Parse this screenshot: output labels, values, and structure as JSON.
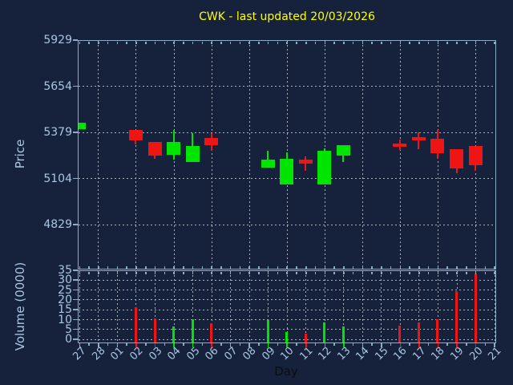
{
  "title": "CWK - last updated 20/03/2026",
  "colors": {
    "background": "#16223c",
    "axis": "#8cadc8",
    "tick_label": "#a9c6e2",
    "grid": "#a9afb8",
    "up": "#00e500",
    "down": "#f01515",
    "title": "#ffff00",
    "xlabel": "#0d0d0d"
  },
  "chart_data": [
    {
      "type": "candlestick",
      "title": "CWK - last updated 20/03/2026",
      "xlabel": "Day",
      "ylabel": "Price",
      "ylim": [
        4566,
        5929
      ],
      "yticks": [
        5929,
        5654,
        5379,
        5104,
        4829
      ],
      "grid": true,
      "grid_vertical_every": "2 days starting at 28",
      "categories": [
        "27",
        "28",
        "01",
        "02",
        "03",
        "04",
        "05",
        "06",
        "07",
        "08",
        "09",
        "10",
        "11",
        "12",
        "13",
        "14",
        "15",
        "16",
        "17",
        "18",
        "19",
        "20",
        "21"
      ],
      "candles": [
        {
          "i": 0,
          "day": "27",
          "open": 5396,
          "high": 5434,
          "low": 5396,
          "close": 5434,
          "direction": "up"
        },
        {
          "i": 3,
          "day": "02",
          "open": 5393,
          "high": 5393,
          "low": 5307,
          "close": 5331,
          "direction": "down"
        },
        {
          "i": 4,
          "day": "03",
          "open": 5317,
          "high": 5317,
          "low": 5221,
          "close": 5236,
          "direction": "down"
        },
        {
          "i": 5,
          "day": "04",
          "open": 5245,
          "high": 5389,
          "low": 5212,
          "close": 5317,
          "direction": "up"
        },
        {
          "i": 6,
          "day": "05",
          "open": 5202,
          "high": 5374,
          "low": 5202,
          "close": 5293,
          "direction": "up"
        },
        {
          "i": 7,
          "day": "06",
          "open": 5341,
          "high": 5374,
          "low": 5269,
          "close": 5302,
          "direction": "down"
        },
        {
          "i": 10,
          "day": "09",
          "open": 5164,
          "high": 5269,
          "low": 5164,
          "close": 5216,
          "direction": "up"
        },
        {
          "i": 11,
          "day": "10",
          "open": 5066,
          "high": 5257,
          "low": 5066,
          "close": 5221,
          "direction": "up"
        },
        {
          "i": 12,
          "day": "11",
          "open": 5212,
          "high": 5231,
          "low": 5145,
          "close": 5188,
          "direction": "down"
        },
        {
          "i": 13,
          "day": "12",
          "open": 5065,
          "high": 5283,
          "low": 5065,
          "close": 5268,
          "direction": "up"
        },
        {
          "i": 14,
          "day": "13",
          "open": 5236,
          "high": 5299,
          "low": 5199,
          "close": 5299,
          "direction": "up"
        },
        {
          "i": 17,
          "day": "16",
          "open": 5311,
          "high": 5335,
          "low": 5270,
          "close": 5292,
          "direction": "down"
        },
        {
          "i": 18,
          "day": "17",
          "open": 5347,
          "high": 5379,
          "low": 5275,
          "close": 5328,
          "direction": "down"
        },
        {
          "i": 19,
          "day": "18",
          "open": 5339,
          "high": 5390,
          "low": 5220,
          "close": 5251,
          "direction": "down"
        },
        {
          "i": 20,
          "day": "19",
          "open": 5275,
          "high": 5275,
          "low": 5135,
          "close": 5159,
          "direction": "down"
        },
        {
          "i": 21,
          "day": "20",
          "open": 5294,
          "high": 5294,
          "low": 5145,
          "close": 5180,
          "direction": "down"
        }
      ]
    },
    {
      "type": "bar",
      "ylabel": "Volume (0000)",
      "ylim": [
        -1.5,
        35
      ],
      "yticks": [
        35,
        30,
        25,
        20,
        15,
        10,
        5,
        0
      ],
      "grid": true,
      "grid_vertical_every": "1 day",
      "categories": [
        "27",
        "28",
        "01",
        "02",
        "03",
        "04",
        "05",
        "06",
        "07",
        "08",
        "09",
        "10",
        "11",
        "12",
        "13",
        "14",
        "15",
        "16",
        "17",
        "18",
        "19",
        "20",
        "21"
      ],
      "values": [
        {
          "i": 3,
          "day": "02",
          "value": 16.3,
          "direction": "down"
        },
        {
          "i": 4,
          "day": "03",
          "value": 10.6,
          "direction": "down"
        },
        {
          "i": 5,
          "day": "04",
          "value": 6.6,
          "direction": "up"
        },
        {
          "i": 6,
          "day": "05",
          "value": 10.2,
          "direction": "up"
        },
        {
          "i": 7,
          "day": "06",
          "value": 8.2,
          "direction": "down"
        },
        {
          "i": 10,
          "day": "09",
          "value": 9.8,
          "direction": "up"
        },
        {
          "i": 11,
          "day": "10",
          "value": 3.4,
          "direction": "up"
        },
        {
          "i": 12,
          "day": "11",
          "value": 2.6,
          "direction": "down"
        },
        {
          "i": 13,
          "day": "12",
          "value": 8.4,
          "direction": "up"
        },
        {
          "i": 14,
          "day": "13",
          "value": 6.6,
          "direction": "up"
        },
        {
          "i": 17,
          "day": "16",
          "value": 7.0,
          "direction": "down"
        },
        {
          "i": 18,
          "day": "17",
          "value": 8.6,
          "direction": "down"
        },
        {
          "i": 19,
          "day": "18",
          "value": 10.2,
          "direction": "down"
        },
        {
          "i": 20,
          "day": "19",
          "value": 24.3,
          "direction": "down"
        },
        {
          "i": 21,
          "day": "20",
          "value": 33.1,
          "direction": "down"
        }
      ]
    }
  ],
  "price_axis": {
    "label": "Price"
  },
  "volume_axis": {
    "label": "Volume (0000)"
  },
  "x_axis": {
    "label": "Day"
  }
}
